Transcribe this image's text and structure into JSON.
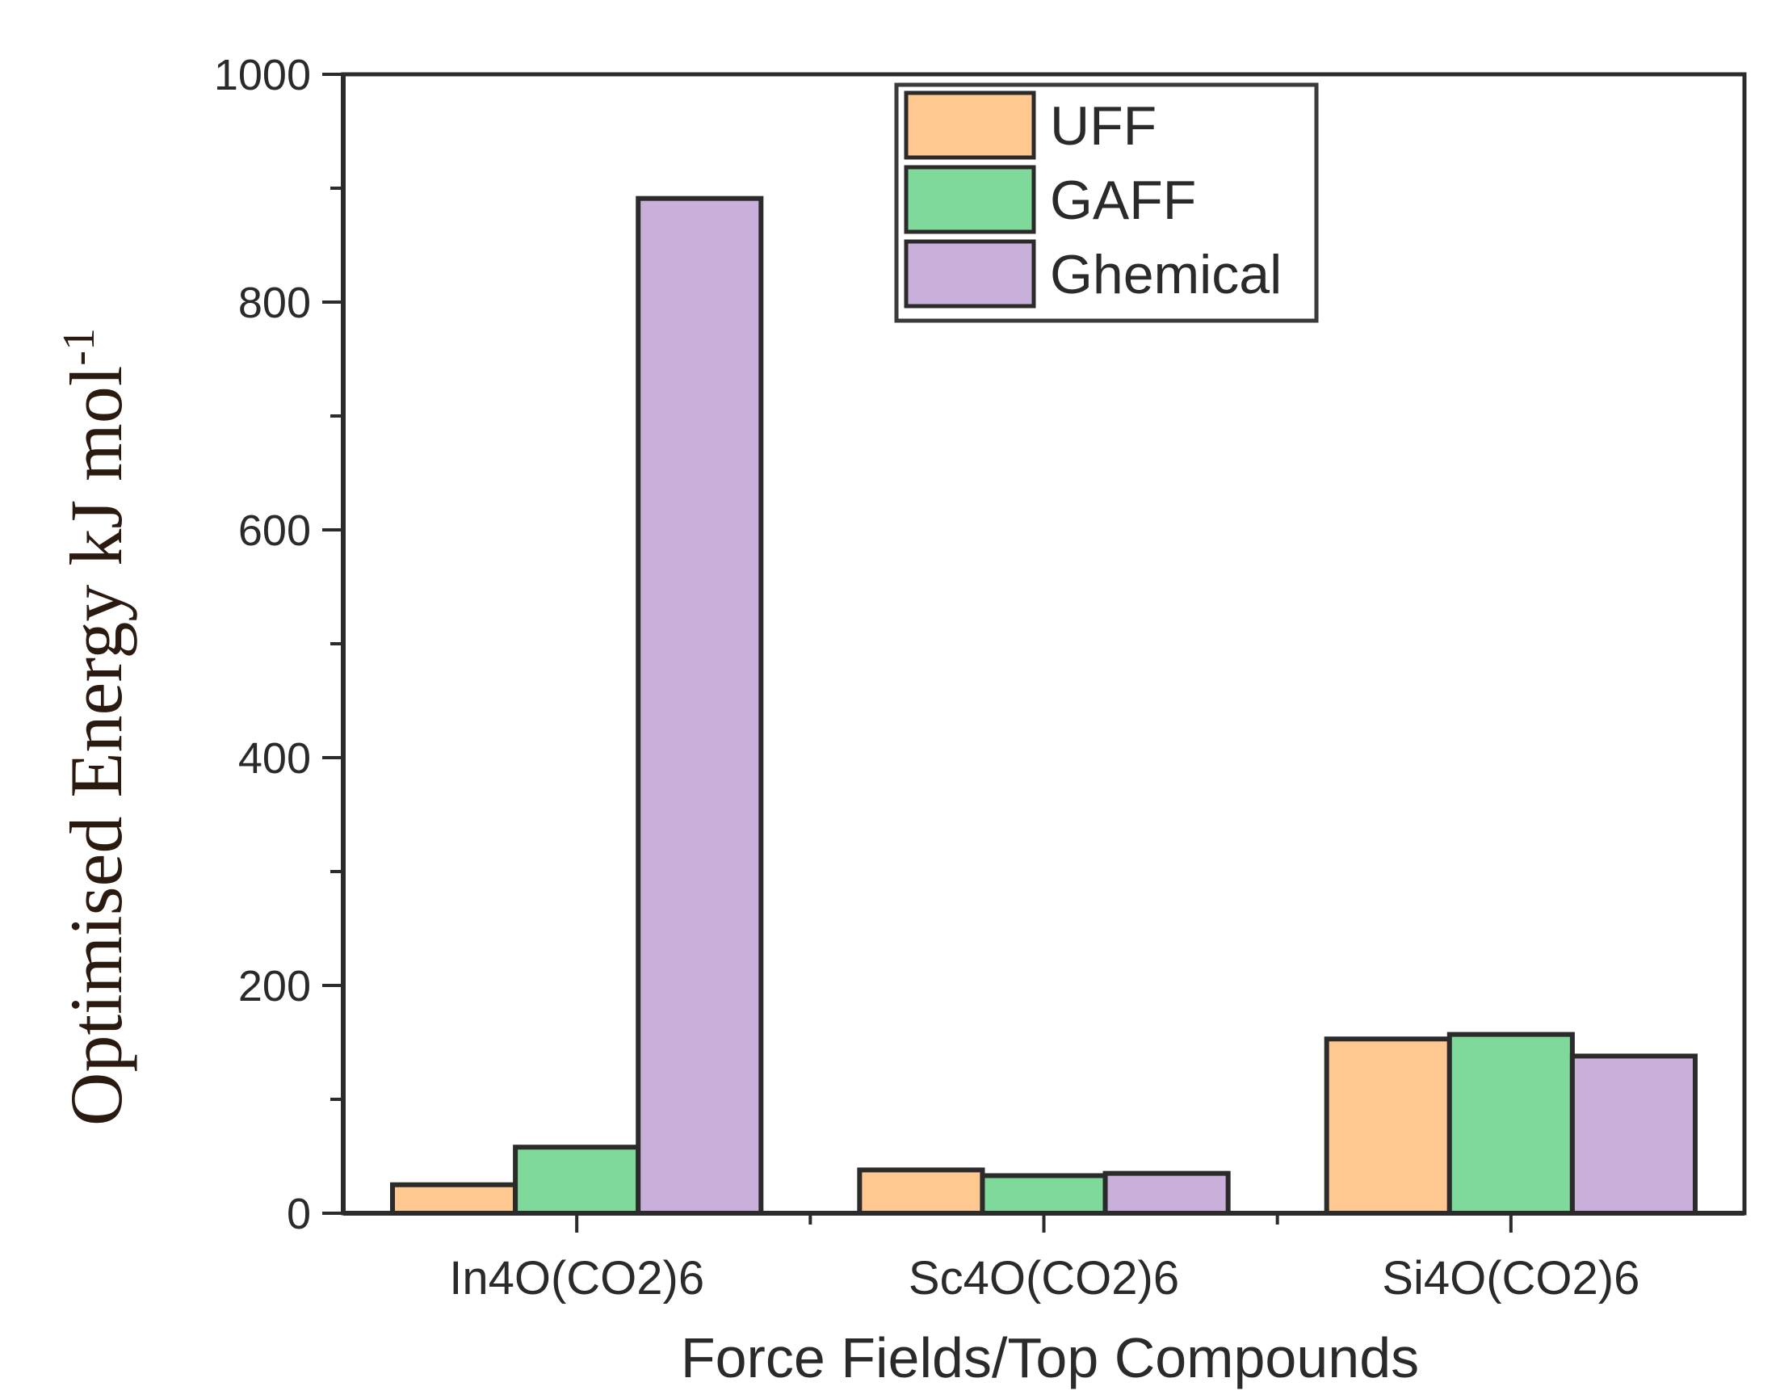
{
  "chart_data": {
    "type": "bar",
    "categories": [
      "In4O(CO2)6",
      "Sc4O(CO2)6",
      "Si4O(CO2)6"
    ],
    "series": [
      {
        "name": "UFF",
        "color": "#ffc891",
        "values": [
          25,
          38,
          153
        ]
      },
      {
        "name": "GAFF",
        "color": "#7fd99a",
        "values": [
          58,
          33,
          157
        ]
      },
      {
        "name": "Ghemical",
        "color": "#c8b0da",
        "values": [
          891,
          35,
          138
        ]
      }
    ],
    "xlabel": "Force Fields/Top Compounds",
    "ylabel": "Optimised Energy kJ mol",
    "ylabel_sup": "-1",
    "ylim": [
      0,
      1000
    ],
    "yticks": [
      0,
      200,
      400,
      600,
      800,
      1000
    ],
    "grid": false,
    "legend_position": "top-center"
  }
}
